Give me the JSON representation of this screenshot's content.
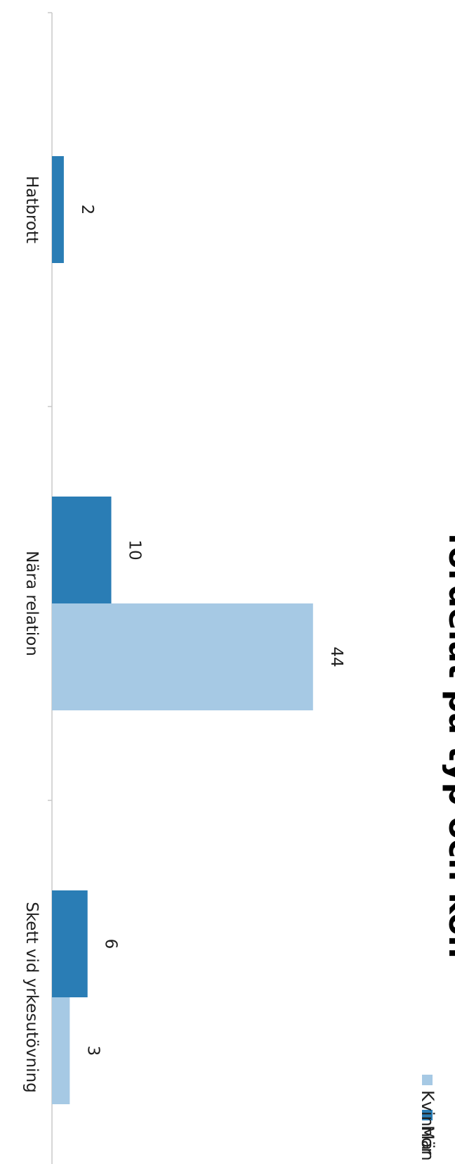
{
  "chart_data": {
    "type": "bar",
    "orientation": "rotated-90-clockwise",
    "title": "fördelat på typ och kön",
    "xlabel": "",
    "ylabel": "",
    "categories": [
      "Hatbrott",
      "Nära relation",
      "Skett vid yrkesutövning"
    ],
    "series": [
      {
        "name": "Män",
        "values": [
          2,
          10,
          6
        ],
        "color": "#2a7db5"
      },
      {
        "name": "Kvinnor",
        "values": [
          null,
          44,
          3
        ],
        "color": "#a6c9e4"
      }
    ],
    "ylim": [
      0,
      50
    ],
    "grid": false,
    "legend": "top-right",
    "data_labels": true
  }
}
